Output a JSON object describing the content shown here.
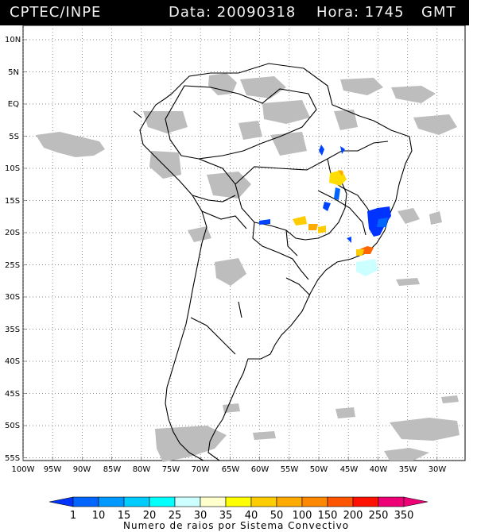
{
  "header": {
    "source": "CPTEC/INPE",
    "date": "Data: 20090318",
    "hour": "Hora: 1745",
    "tz": "GMT"
  },
  "axes": {
    "lat_labels": [
      "10N",
      "5N",
      "EQ",
      "5S",
      "10S",
      "15S",
      "20S",
      "25S",
      "30S",
      "35S",
      "40S",
      "45S",
      "50S",
      "55S"
    ],
    "lon_labels": [
      "100W",
      "95W",
      "90W",
      "85W",
      "80W",
      "75W",
      "70W",
      "65W",
      "60W",
      "55W",
      "50W",
      "45W",
      "40W",
      "35W",
      "30W"
    ]
  },
  "legend": {
    "title": "Numero de raios por Sistema Convectivo",
    "values": [
      "1",
      "10",
      "15",
      "20",
      "25",
      "30",
      "35",
      "40",
      "50",
      "100",
      "150",
      "200",
      "250",
      "350"
    ],
    "colors": [
      "#0033ff",
      "#0066ff",
      "#0099ff",
      "#00ccff",
      "#00ffff",
      "#ccffff",
      "#ffffcc",
      "#ffff00",
      "#ffcc00",
      "#ffaa00",
      "#ff8800",
      "#ff5500",
      "#ff1100",
      "#ee0077"
    ]
  },
  "map": {
    "land_color": "#ffffff",
    "cloud_color": "#bbbbbb",
    "border_color": "#000000",
    "grid_style": "dotted"
  }
}
